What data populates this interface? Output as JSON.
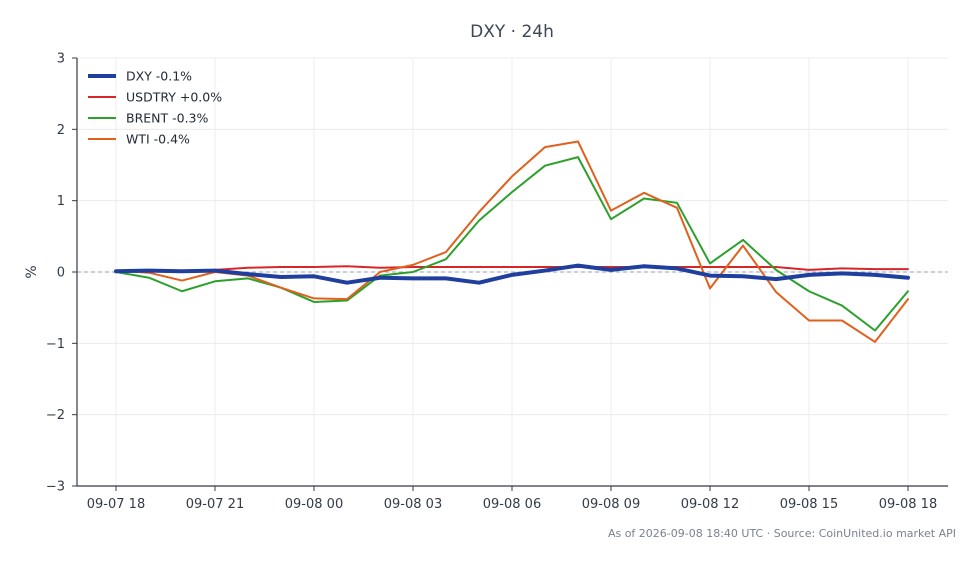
{
  "chart_data": {
    "type": "line",
    "title": "DXY · 24h",
    "xlabel": "",
    "ylabel": "%",
    "ylim": [
      -3,
      3
    ],
    "yticks": [
      "3",
      "2",
      "1",
      "0",
      "−1",
      "−2",
      "−3"
    ],
    "ytick_values": [
      3,
      2,
      1,
      0,
      -1,
      -2,
      -3
    ],
    "x_hours": [
      0,
      1,
      2,
      3,
      4,
      5,
      6,
      7,
      8,
      9,
      10,
      11,
      12,
      13,
      14,
      15,
      16,
      17,
      18,
      19,
      20,
      21,
      22,
      23,
      24
    ],
    "xticks": [
      {
        "hour": 0,
        "label": "09-07 18"
      },
      {
        "hour": 3,
        "label": "09-07 21"
      },
      {
        "hour": 6,
        "label": "09-08 00"
      },
      {
        "hour": 9,
        "label": "09-08 03"
      },
      {
        "hour": 12,
        "label": "09-08 06"
      },
      {
        "hour": 15,
        "label": "09-08 09"
      },
      {
        "hour": 18,
        "label": "09-08 12"
      },
      {
        "hour": 21,
        "label": "09-08 15"
      },
      {
        "hour": 24,
        "label": "09-08 18"
      }
    ],
    "zero_line": true,
    "grid": true,
    "legend_position": "top-left",
    "series": [
      {
        "name": "DXY -0.1%",
        "color": "#1f3f9f",
        "width": 4,
        "values": [
          0.01,
          0.02,
          0.01,
          0.02,
          -0.03,
          -0.07,
          -0.06,
          -0.15,
          -0.08,
          -0.09,
          -0.09,
          -0.15,
          -0.04,
          0.02,
          0.09,
          0.03,
          0.08,
          0.05,
          -0.05,
          -0.06,
          -0.1,
          -0.04,
          -0.02,
          -0.04,
          -0.08
        ]
      },
      {
        "name": "USDTRY +0.0%",
        "color": "#d62728",
        "width": 2,
        "values": [
          0.01,
          0.02,
          0.02,
          0.03,
          0.06,
          0.07,
          0.07,
          0.08,
          0.06,
          0.07,
          0.07,
          0.07,
          0.07,
          0.07,
          0.07,
          0.07,
          0.07,
          0.07,
          0.07,
          0.07,
          0.07,
          0.03,
          0.05,
          0.04,
          0.04
        ]
      },
      {
        "name": "BRENT -0.3%",
        "color": "#2ca02c",
        "width": 2,
        "values": [
          0.0,
          -0.08,
          -0.27,
          -0.13,
          -0.09,
          -0.22,
          -0.42,
          -0.4,
          -0.05,
          0.0,
          0.18,
          0.72,
          1.12,
          1.49,
          1.61,
          0.74,
          1.03,
          0.97,
          0.12,
          0.45,
          0.03,
          -0.27,
          -0.47,
          -0.82,
          -0.27
        ]
      },
      {
        "name": "WTI -0.4%",
        "color": "#e0601c",
        "width": 2,
        "values": [
          0.02,
          -0.01,
          -0.12,
          0.0,
          -0.05,
          -0.22,
          -0.37,
          -0.38,
          0.0,
          0.1,
          0.28,
          0.84,
          1.34,
          1.75,
          1.83,
          0.86,
          1.11,
          0.9,
          -0.23,
          0.37,
          -0.28,
          -0.68,
          -0.68,
          -0.98,
          -0.38
        ]
      }
    ]
  },
  "footer": "As of 2026-09-08 18:40 UTC · Source: CoinUnited.io market API"
}
